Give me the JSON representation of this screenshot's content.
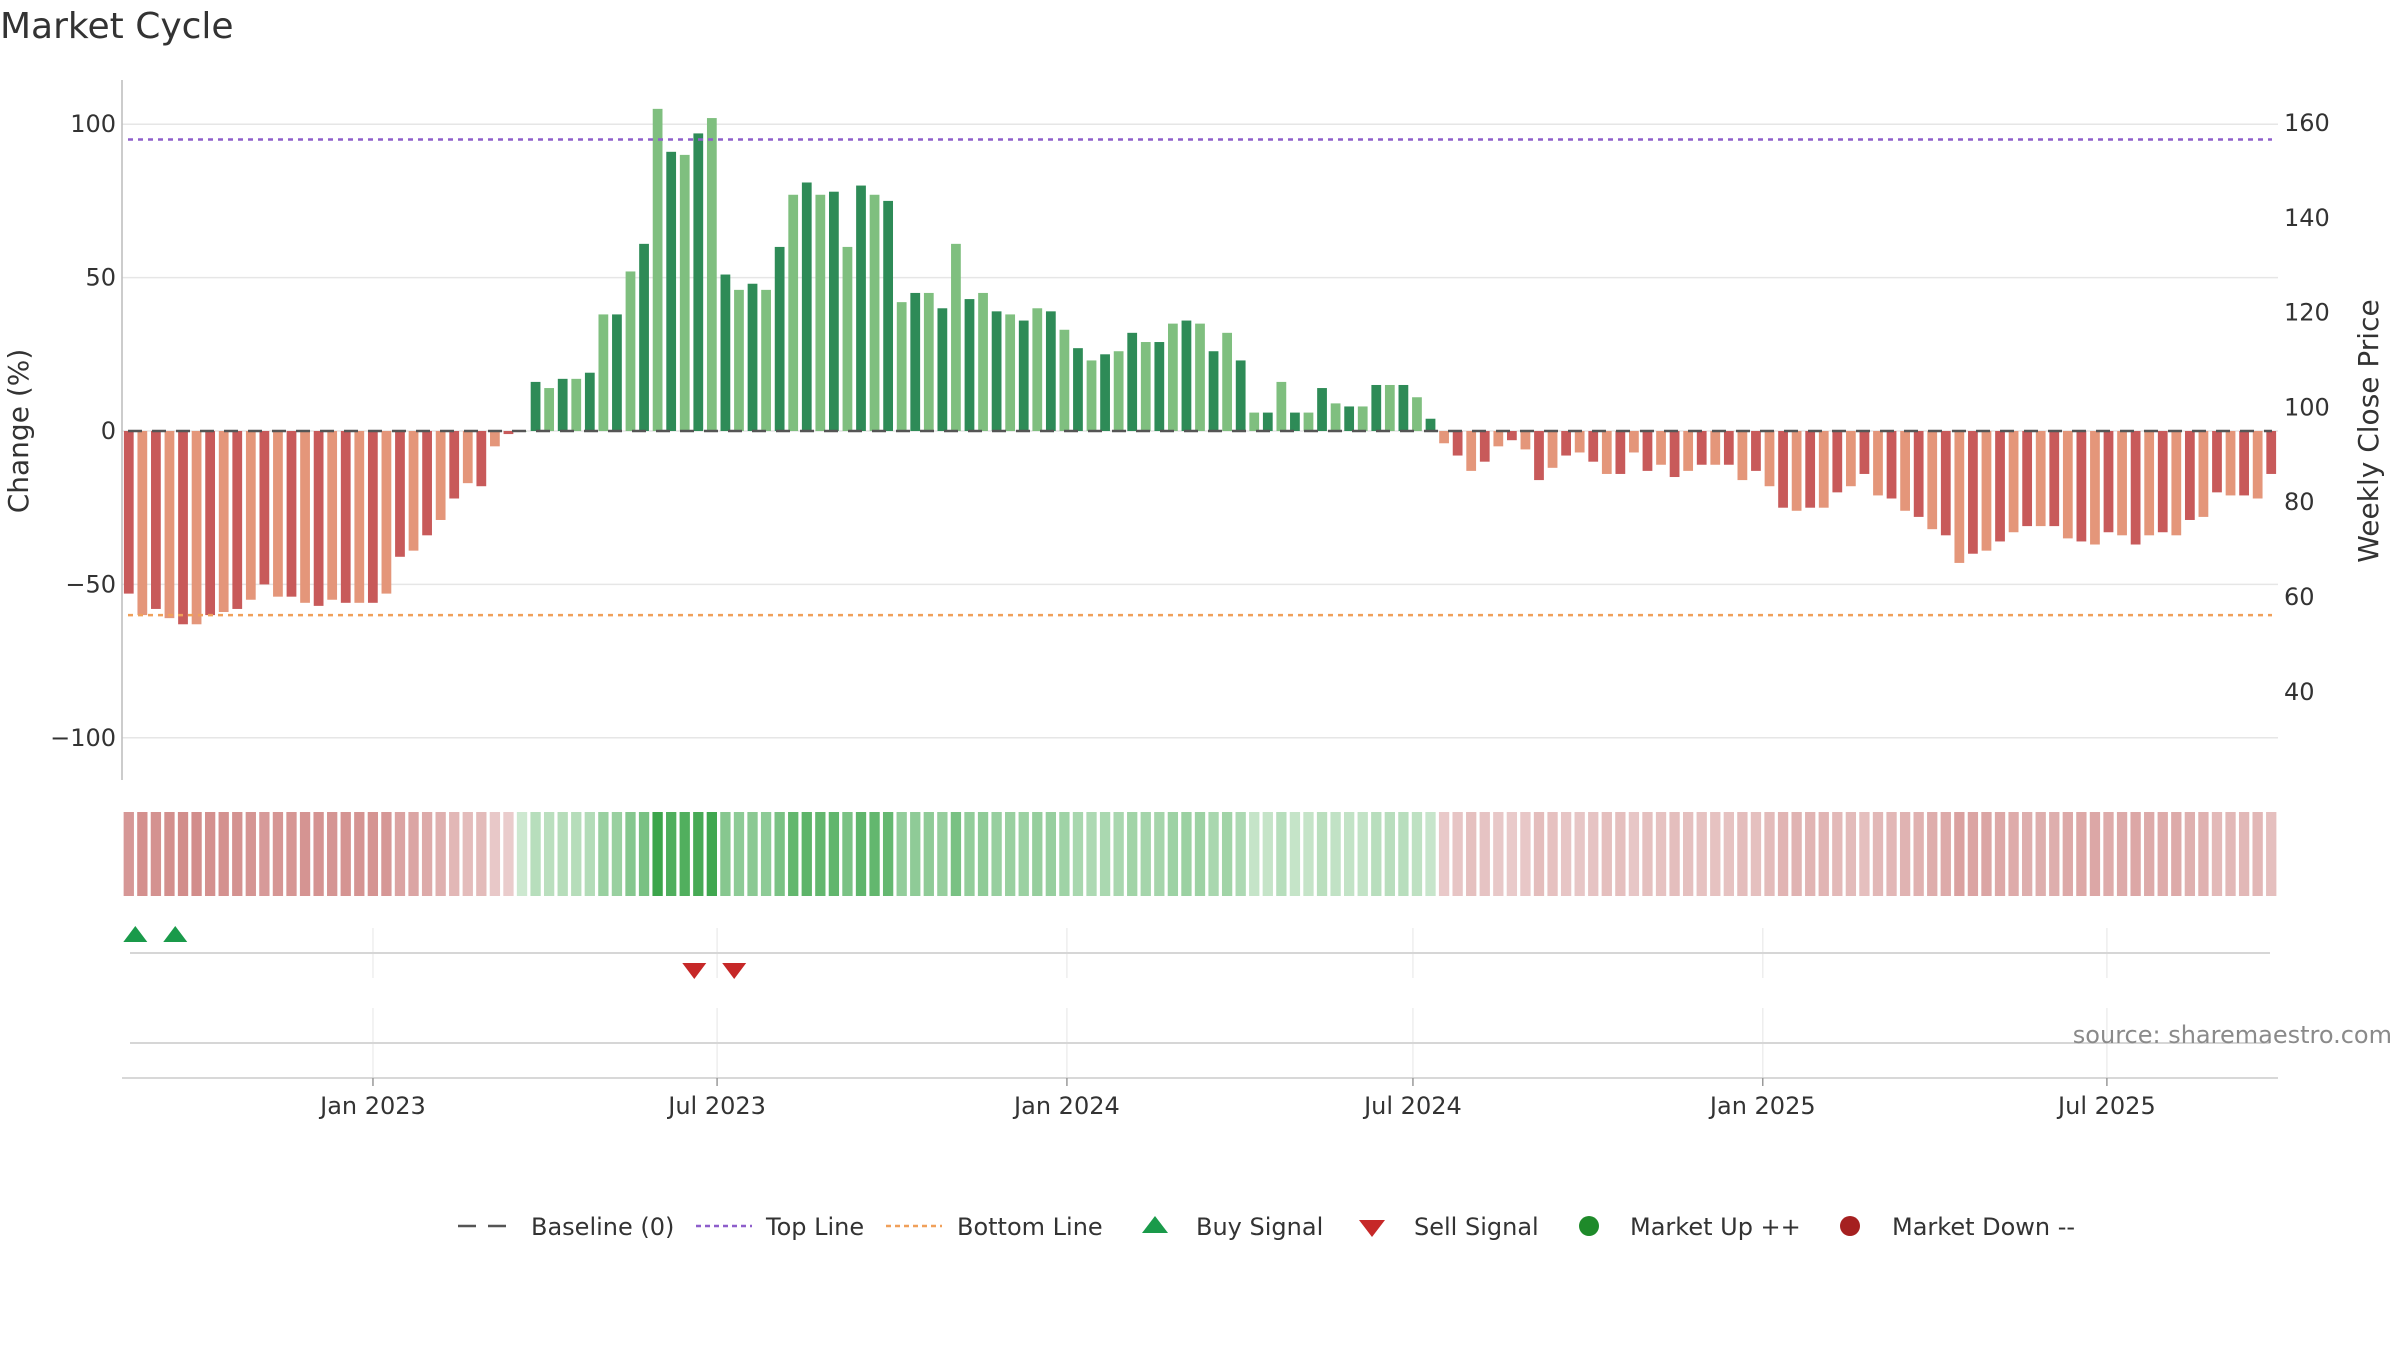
{
  "chart_data": {
    "type": "bar",
    "title": "Market Cycle",
    "ylabel": "Change (%)",
    "y2label": "Weekly Close Price",
    "ylim": [
      -112,
      112
    ],
    "y2lim": [
      24,
      168
    ],
    "yticks": [
      -100,
      -50,
      0,
      50,
      100
    ],
    "yticks_labels": [
      "−100",
      "−50",
      "0",
      "50",
      "100"
    ],
    "y2ticks": [
      40,
      60,
      80,
      100,
      120,
      140,
      160
    ],
    "x_start": "2022-08-22",
    "x_end": "2025-09-29",
    "x_tick_labels": [
      {
        "date": "2023-01-01",
        "label": "Jan 2023"
      },
      {
        "date": "2023-07-01",
        "label": "Jul 2023"
      },
      {
        "date": "2024-01-01",
        "label": "Jan 2024"
      },
      {
        "date": "2024-07-01",
        "label": "Jul 2024"
      },
      {
        "date": "2025-01-01",
        "label": "Jan 2025"
      },
      {
        "date": "2025-07-01",
        "label": "Jul 2025"
      }
    ],
    "first_week": "2022-08-22",
    "series": [
      {
        "name": "Change (%)",
        "values": [
          -53,
          -60,
          -58,
          -61,
          -63,
          -63,
          -60,
          -59,
          -58,
          -55,
          -50,
          -54,
          -54,
          -56,
          -57,
          -55,
          -56,
          -56,
          -56,
          -53,
          -41,
          -39,
          -34,
          -29,
          -22,
          -17,
          -18,
          -5,
          -1,
          0,
          16,
          14,
          17,
          17,
          19,
          38,
          38,
          52,
          61,
          105,
          91,
          90,
          97,
          102,
          51,
          46,
          48,
          46,
          60,
          77,
          81,
          77,
          78,
          60,
          80,
          77,
          75,
          42,
          45,
          45,
          40,
          61,
          43,
          45,
          39,
          38,
          36,
          40,
          39,
          33,
          27,
          23,
          25,
          26,
          32,
          29,
          29,
          35,
          36,
          35,
          26,
          32,
          23,
          6,
          6,
          16,
          6,
          6,
          14,
          9,
          8,
          8,
          15,
          15,
          15,
          11,
          4,
          -4,
          -8,
          -13,
          -10,
          -5,
          -3,
          -6,
          -16,
          -12,
          -8,
          -7,
          -10,
          -14,
          -14,
          -7,
          -13,
          -11,
          -15,
          -13,
          -11,
          -11,
          -11,
          -16,
          -13,
          -18,
          -25,
          -26,
          -25,
          -25,
          -20,
          -18,
          -14,
          -21,
          -22,
          -26,
          -28,
          -32,
          -34,
          -43,
          -40,
          -39,
          -36,
          -33,
          -31,
          -31,
          -31,
          -35,
          -36,
          -37,
          -33,
          -34,
          -37,
          -34,
          -33,
          -34,
          -29,
          -28,
          -20,
          -21,
          -21,
          -22,
          -14
        ]
      }
    ],
    "reference_lines": [
      {
        "name": "Baseline (0)",
        "value": 0,
        "style": "dashdot",
        "color": "#555555"
      },
      {
        "name": "Top Line",
        "value": 95,
        "style": "dotted",
        "color": "#8e5ecb"
      },
      {
        "name": "Bottom Line",
        "value": -60,
        "style": "dotted",
        "color": "#f0a05a"
      }
    ],
    "buy_signals": [
      "2022-08-29",
      "2022-09-19"
    ],
    "sell_signals": [
      "2023-06-19",
      "2023-07-10"
    ],
    "market_up_events": [],
    "market_down_events": [],
    "legend": [
      "Baseline (0)",
      "Top Line",
      "Bottom Line",
      "Buy Signal",
      "Sell Signal",
      "Market Up ++",
      "Market Down --"
    ],
    "legend_position": "bottom-center",
    "grid": true,
    "colors": {
      "pos_dark": "#2e8b57",
      "pos_light": "#7fbf7f",
      "neg_dark": "#c85a5a",
      "neg_light": "#e4967a",
      "top_line": "#8e5ecb",
      "bottom_line": "#f0a05a",
      "baseline": "#555555",
      "buy": "#1a9a4a",
      "sell": "#c62828",
      "market_up": "#1e8a2a",
      "market_down": "#a52020"
    }
  },
  "source": "source: sharemaestro.com"
}
